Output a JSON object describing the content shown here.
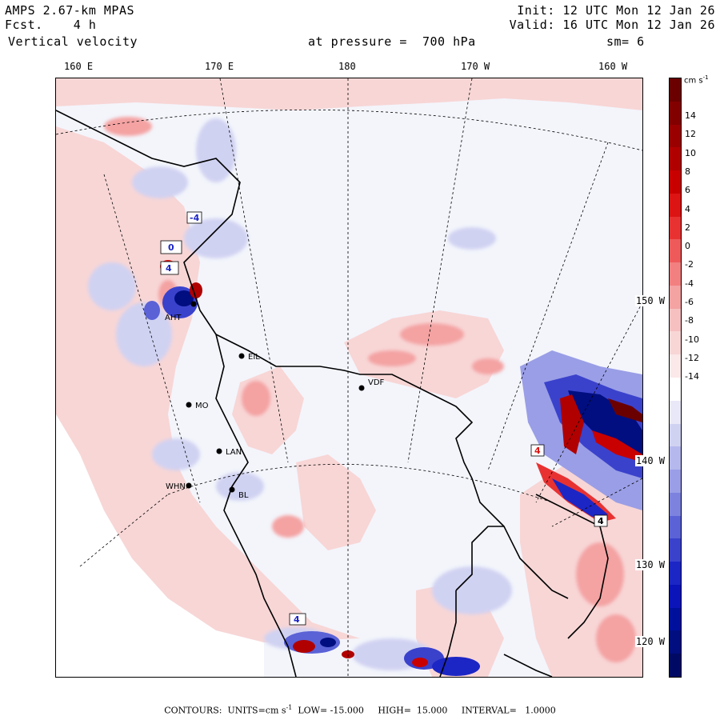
{
  "header": {
    "model": "AMPS 2.67-km MPAS",
    "fcst_label": "Fcst.",
    "fcst_value": "4 h",
    "field": "Vertical velocity",
    "init": "Init: 12 UTC Mon 12 Jan 26",
    "valid": "Valid: 16 UTC Mon 12 Jan 26",
    "level": "at pressure =  700 hPa",
    "smooth": "sm= 6"
  },
  "longitudes": [
    "160 E",
    "170 E",
    "180",
    "170 W",
    "160 W"
  ],
  "latitudes": [
    "150 W",
    "140 W",
    "130 W",
    "120 W"
  ],
  "stations": [
    "AHT",
    "EIL",
    "MO",
    "VDF",
    "LAN",
    "WHN",
    "BL"
  ],
  "contour_boxes": [
    "-4",
    "0",
    "4",
    "4",
    "4",
    "4"
  ],
  "colorbar": {
    "unit": "cm s",
    "unit_exp": "-1",
    "ticks": [
      "14",
      "12",
      "10",
      "8",
      "6",
      "4",
      "2",
      "0",
      "-2",
      "-4",
      "-6",
      "-8",
      "-10",
      "-12",
      "-14"
    ],
    "colors_top_to_bottom": [
      "#6b0000",
      "#830000",
      "#9a0000",
      "#b10000",
      "#c80000",
      "#dc1414",
      "#e83232",
      "#ee5a5a",
      "#f28080",
      "#f4a2a2",
      "#f6c0c0",
      "#f8d6d6",
      "#fbe8e8",
      "#ffffff",
      "#e8e8f8",
      "#d0d2f2",
      "#b4b8ec",
      "#9a9ee6",
      "#7c82de",
      "#5a62d6",
      "#3a42cc",
      "#1c26c4",
      "#0a14b8",
      "#00109c",
      "#000e80",
      "#000a64"
    ]
  },
  "footer": {
    "contours_label": "CONTOURS:",
    "units_label": "UNITS=cm s",
    "units_exp": "-1",
    "low": "LOW= -15.000",
    "high": "HIGH=  15.000",
    "interval": "INTERVAL=   1.0000"
  }
}
